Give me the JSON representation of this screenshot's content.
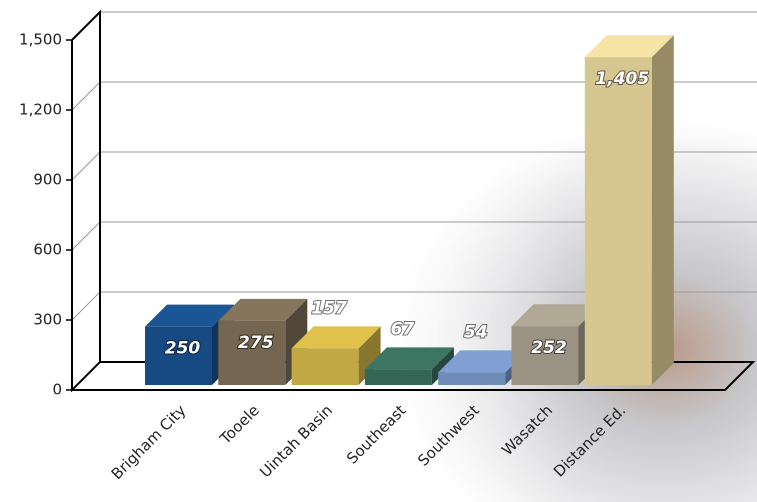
{
  "chart_data": {
    "type": "bar3d",
    "categories": [
      "Brigham City",
      "Tooele",
      "Uintah Basin",
      "Southeast",
      "Southwest",
      "Wasatch",
      "Distance Ed."
    ],
    "values": [
      250,
      275,
      157,
      67,
      54,
      252,
      1405
    ],
    "value_labels": [
      "250",
      "275",
      "157",
      "67",
      "54",
      "252",
      "1,405"
    ],
    "colors": [
      "#174a82",
      "#746650",
      "#c2a842",
      "#356656",
      "#6f8bb8",
      "#9a9282",
      "#d6c690"
    ],
    "ylim": [
      0,
      1500
    ],
    "yticks": [
      0,
      300,
      600,
      900,
      {
        "value": 1200,
        "label": "1,200"
      },
      {
        "value": 1500,
        "label": "1,500"
      }
    ],
    "grid": true
  }
}
